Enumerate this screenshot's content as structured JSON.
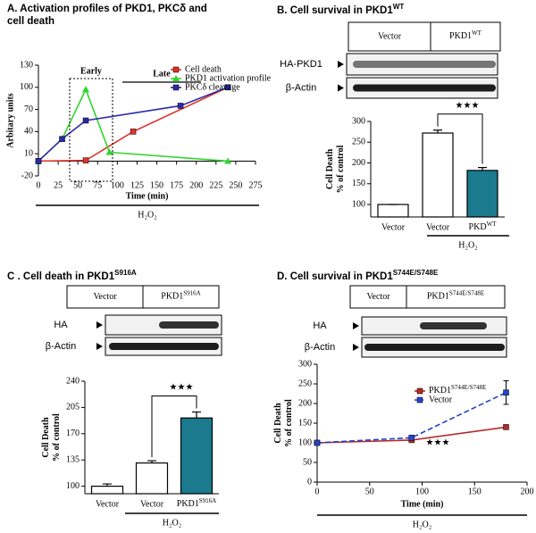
{
  "chart_data": [
    {
      "type": "line",
      "title": [
        "A.  Activation profiles of PKD1, PKCδ and",
        "cell death"
      ],
      "ylabel": "Arbitary units",
      "xlabel": "Time (min)",
      "treatment": "H₂O₂",
      "annotations": [
        "Early",
        "Late"
      ],
      "xlim": [
        0,
        275
      ],
      "xticks": [
        0,
        25,
        50,
        75,
        100,
        125,
        150,
        175,
        200,
        225,
        250,
        275
      ],
      "ylim": [
        -20,
        130
      ],
      "yticks": [
        -20,
        10,
        40,
        70,
        100,
        130
      ],
      "series": [
        {
          "name": "Cell death",
          "color": "#e0312b",
          "marker": "square",
          "x": [
            0,
            60,
            120,
            240
          ],
          "values": [
            0,
            1,
            40,
            100
          ]
        },
        {
          "name": "PKD1 activation profile",
          "color": "#2fd42f",
          "marker": "triangle",
          "x": [
            0,
            30,
            60,
            90,
            240
          ],
          "values": [
            0,
            30,
            97,
            12,
            0
          ]
        },
        {
          "name": "PKCδ cleavage",
          "color": "#2b2ba8",
          "marker": "square",
          "x": [
            0,
            30,
            60,
            180,
            240
          ],
          "values": [
            0,
            30,
            55,
            75,
            100
          ]
        }
      ]
    },
    {
      "type": "bar",
      "title": {
        "text": "B.  Cell survival in PKD1",
        "sup": "WT"
      },
      "blot": {
        "lanes": [
          "Vector",
          {
            "text": "PKD1",
            "sup": "WT"
          }
        ],
        "rows": [
          "HA-PKD1",
          "β-Actin"
        ]
      },
      "categories": [
        "Vector",
        "Vector",
        {
          "text": "PKD",
          "sup": "WT"
        }
      ],
      "values": [
        100,
        272,
        182
      ],
      "errors": [
        0,
        7,
        7
      ],
      "colors": [
        "#ffffff",
        "#ffffff",
        "#1b7a8e"
      ],
      "ylim": [
        70,
        300
      ],
      "yticks": [
        100,
        150,
        200,
        250,
        300
      ],
      "ylabel": [
        "Cell Death",
        "% of control"
      ],
      "significance": "★★★",
      "treatment": "H₂O₂"
    },
    {
      "type": "bar",
      "title": {
        "text": "C .  Cell death in PKD1",
        "sup": "S916A"
      },
      "blot": {
        "lanes": [
          "Vector",
          {
            "text": "PKD1",
            "sup": "S916A"
          }
        ],
        "rows": [
          "HA",
          "β-Actin"
        ]
      },
      "categories": [
        "Vector",
        "Vector",
        {
          "text": "PKD1",
          "sup": "S916A"
        }
      ],
      "values": [
        100,
        131,
        191
      ],
      "errors": [
        3,
        3,
        8
      ],
      "colors": [
        "#ffffff",
        "#ffffff",
        "#1b7a8e"
      ],
      "ylim": [
        90,
        240
      ],
      "yticks": [
        100,
        135,
        170,
        205,
        240
      ],
      "ylabel": [
        "Cell Death",
        "% of control"
      ],
      "significance": "★★★",
      "treatment": "H₂O₂"
    },
    {
      "type": "line",
      "title": {
        "text": "D.  Cell survival in PKD1",
        "sup": "S744E/S748E"
      },
      "blot": {
        "lanes": [
          "Vector",
          {
            "text": "PKD1",
            "sup": "S744E/S748E"
          }
        ],
        "rows": [
          "HA",
          "β-Actin"
        ]
      },
      "xlim": [
        0,
        200
      ],
      "xticks": [
        0,
        50,
        100,
        150,
        200
      ],
      "ylim": [
        0,
        300
      ],
      "yticks": [
        0,
        50,
        100,
        150,
        200,
        250,
        300
      ],
      "ylabel": [
        "Cell Death",
        "% of control"
      ],
      "xlabel": "Time (min)",
      "treatment": "H₂O₂",
      "significance": "★★★",
      "legend": "top-right",
      "series": [
        {
          "name": {
            "text": "PKD1",
            "sup": "S744E/S748E"
          },
          "color": "#b52a2a",
          "marker": "square",
          "x": [
            0,
            90,
            180
          ],
          "values": [
            100,
            107,
            140
          ]
        },
        {
          "name": "Vector",
          "color": "#2444c8",
          "marker": "square",
          "dash": true,
          "x": [
            0,
            90,
            180
          ],
          "values": [
            100,
            113,
            228
          ],
          "errors": [
            0,
            5,
            30
          ]
        }
      ]
    }
  ]
}
